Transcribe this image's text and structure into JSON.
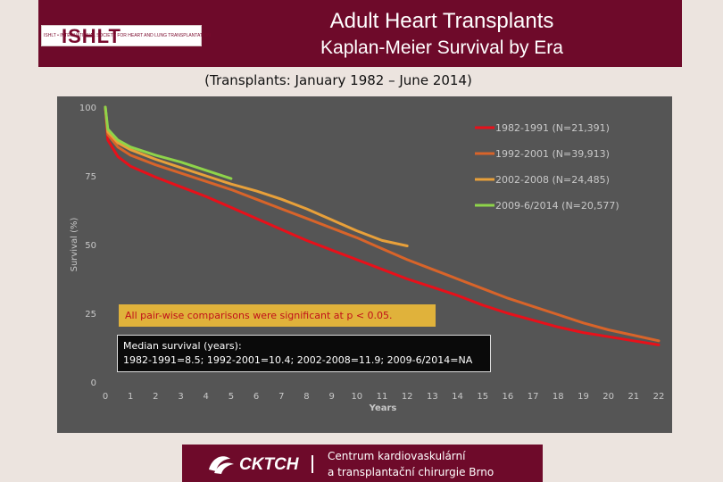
{
  "header": {
    "title": "Adult Heart Transplants",
    "subtitle": "Kaplan-Meier Survival by Era",
    "logo_text": "ISHLT",
    "logo_subtext": "ISHLT • INTERNATIONAL SOCIETY FOR HEART AND LUNG TRANSPLANTATION"
  },
  "period": "(Transplants: January 1982 – June 2014)",
  "footer": {
    "logo_text": "CKTCH",
    "line1": "Centrum kardiovaskulární",
    "line2": "a transplantační chirurgie Brno"
  },
  "colors": {
    "header_bg": "#6e0a2a",
    "panel_bg": "#555555",
    "s1": "#e8101a",
    "s2": "#d8642a",
    "s3": "#e8a03a",
    "s4": "#8ed44a"
  },
  "chart_data": {
    "type": "line",
    "title": "Kaplan-Meier Survival by Era",
    "xlabel": "Years",
    "ylabel": "Survival (%)",
    "xlim": [
      0,
      22
    ],
    "ylim": [
      0,
      100
    ],
    "x_ticks": [
      "0",
      "1",
      "2",
      "3",
      "4",
      "5",
      "6",
      "7",
      "8",
      "9",
      "10",
      "11",
      "12",
      "13",
      "14",
      "15",
      "16",
      "17",
      "18",
      "19",
      "20",
      "21",
      "22"
    ],
    "y_ticks": [
      "0",
      "25",
      "50",
      "75",
      "100"
    ],
    "grid": false,
    "legend_position": "top-right",
    "series": [
      {
        "name": "1982-1991 (N=21,391)",
        "color": "#e8101a",
        "x": [
          0,
          0.1,
          0.5,
          1,
          2,
          3,
          4,
          5,
          6,
          7,
          8,
          9,
          10,
          11,
          12,
          13,
          14,
          15,
          16,
          17,
          18,
          19,
          20,
          21,
          22
        ],
        "y": [
          100,
          88,
          82,
          78.5,
          74.5,
          71,
          67.5,
          63.5,
          59.5,
          55.5,
          51.5,
          48,
          44.5,
          41,
          37.5,
          34.5,
          31.5,
          28,
          25,
          22.5,
          20,
          18,
          16.5,
          15,
          13.5
        ]
      },
      {
        "name": "1992-2001 (N=39,913)",
        "color": "#d8642a",
        "x": [
          0,
          0.1,
          0.5,
          1,
          2,
          3,
          4,
          5,
          6,
          7,
          8,
          9,
          10,
          11,
          12,
          13,
          14,
          15,
          16,
          17,
          18,
          19,
          20,
          21,
          22
        ],
        "y": [
          100,
          90,
          85.5,
          82.5,
          79,
          76,
          73,
          70,
          66.5,
          63,
          59.5,
          56,
          52.5,
          48.5,
          44.5,
          41,
          37.5,
          34,
          30.5,
          27.5,
          24.5,
          21.5,
          19,
          17,
          15
        ]
      },
      {
        "name": "2002-2008 (N=24,485)",
        "color": "#e8a03a",
        "x": [
          0,
          0.1,
          0.5,
          1,
          2,
          3,
          4,
          5,
          6,
          7,
          8,
          9,
          10,
          11,
          12
        ],
        "y": [
          100,
          91,
          87,
          84.5,
          81,
          78,
          75,
          72,
          69.5,
          66.5,
          63,
          59,
          55,
          51.5,
          49.5
        ]
      },
      {
        "name": "2009-6/2014 (N=20,577)",
        "color": "#8ed44a",
        "x": [
          0,
          0.1,
          0.5,
          1,
          2,
          3,
          4,
          5
        ],
        "y": [
          100,
          92,
          88,
          85.5,
          82.5,
          80,
          77,
          74
        ]
      }
    ],
    "annotations": {
      "significance": "All pair-wise comparisons were significant at p < 0.05.",
      "median_title": "Median survival (years):",
      "median_values": "1982-1991=8.5; 1992-2001=10.4; 2002-2008=11.9; 2009-6/2014=NA"
    }
  }
}
